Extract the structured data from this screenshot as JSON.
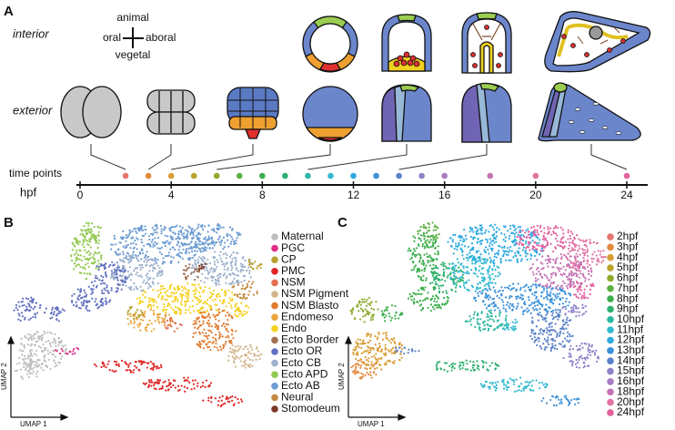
{
  "panel_labels": [
    "A",
    "B",
    "C"
  ],
  "panel_a": {
    "row_labels": [
      "interior",
      "exterior"
    ],
    "orientation": {
      "top": "animal",
      "left": "oral",
      "right": "aboral",
      "bottom": "vegetal"
    }
  },
  "timeline": {
    "label": "time points",
    "axis_label": "hpf",
    "xlim": [
      0,
      24
    ],
    "xticks": [
      0,
      4,
      8,
      12,
      16,
      20,
      24
    ],
    "time_points": [
      2,
      3,
      4,
      5,
      6,
      7,
      8,
      9,
      10,
      11,
      12,
      13,
      14,
      15,
      16,
      18,
      20,
      24
    ],
    "colors": [
      "#e4756e",
      "#e3893c",
      "#d89d35",
      "#b9a22e",
      "#8fa92e",
      "#5cb03f",
      "#3bae4b",
      "#2eb070",
      "#2cb7a2",
      "#31b9cf",
      "#2ea9e0",
      "#3b91d9",
      "#5a80c8",
      "#8c82c9",
      "#a97bc1",
      "#c373b3",
      "#e072a3",
      "#e3619f"
    ]
  },
  "panel_b": {
    "x_label": "UMAP 1",
    "y_label": "UMAP 2",
    "legend": [
      {
        "name": "Maternal",
        "color": "#bdbdbd"
      },
      {
        "name": "PGC",
        "color": "#e0308a"
      },
      {
        "name": "CP",
        "color": "#b8a030"
      },
      {
        "name": "PMC",
        "color": "#e02424"
      },
      {
        "name": "NSM",
        "color": "#e07050"
      },
      {
        "name": "NSM Pigment",
        "color": "#d2b48c"
      },
      {
        "name": "NSM Blasto",
        "color": "#e07a30"
      },
      {
        "name": "Endomeso",
        "color": "#eaa43e"
      },
      {
        "name": "Endo",
        "color": "#f5d020"
      },
      {
        "name": "Ecto Border",
        "color": "#a07050"
      },
      {
        "name": "Ecto OR",
        "color": "#6070c0"
      },
      {
        "name": "Ecto CB",
        "color": "#9db0cc"
      },
      {
        "name": "Ecto APD",
        "color": "#92c850"
      },
      {
        "name": "Ecto AB",
        "color": "#6c9cd2"
      },
      {
        "name": "Neural",
        "color": "#c08a40"
      },
      {
        "name": "Stomodeum",
        "color": "#7a3a2a"
      }
    ]
  },
  "panel_c": {
    "x_label": "UMAP 1",
    "y_label": "UMAP 2",
    "legend": [
      {
        "name": "2hpf",
        "color": "#e4756e"
      },
      {
        "name": "3hpf",
        "color": "#e3893c"
      },
      {
        "name": "4hpf",
        "color": "#d89d35"
      },
      {
        "name": "5hpf",
        "color": "#b9a22e"
      },
      {
        "name": "6hpf",
        "color": "#8fa92e"
      },
      {
        "name": "7hpf",
        "color": "#5cb03f"
      },
      {
        "name": "8hpf",
        "color": "#3bae4b"
      },
      {
        "name": "9hpf",
        "color": "#2eb070"
      },
      {
        "name": "10hpf",
        "color": "#2cb7a2"
      },
      {
        "name": "11hpf",
        "color": "#31b9cf"
      },
      {
        "name": "12hpf",
        "color": "#2ea9e0"
      },
      {
        "name": "13hpf",
        "color": "#3b91d9"
      },
      {
        "name": "14hpf",
        "color": "#5a80c8"
      },
      {
        "name": "15hpf",
        "color": "#8c82c9"
      },
      {
        "name": "16hpf",
        "color": "#a97bc1"
      },
      {
        "name": "18hpf",
        "color": "#c373b3"
      },
      {
        "name": "20hpf",
        "color": "#e072a3"
      },
      {
        "name": "24hpf",
        "color": "#e3619f"
      }
    ]
  }
}
